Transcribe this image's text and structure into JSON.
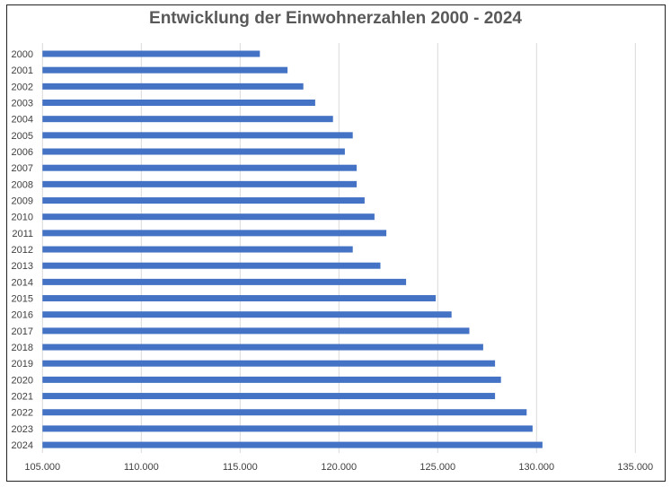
{
  "chart_data": {
    "type": "bar",
    "orientation": "horizontal",
    "title": "Entwicklung der Einwohnerzahlen 2000 - 2024",
    "categories": [
      "2000",
      "2001",
      "2002",
      "2003",
      "2004",
      "2005",
      "2006",
      "2007",
      "2008",
      "2009",
      "2010",
      "2011",
      "2012",
      "2013",
      "2014",
      "2015",
      "2016",
      "2017",
      "2018",
      "2019",
      "2020",
      "2021",
      "2022",
      "2023",
      "2024"
    ],
    "values": [
      116000,
      117400,
      118200,
      118800,
      119700,
      120700,
      120300,
      120900,
      120900,
      121300,
      121800,
      122400,
      120700,
      122100,
      123400,
      124900,
      125700,
      126600,
      127300,
      127900,
      128200,
      127900,
      129500,
      129800,
      130300
    ],
    "xlim": [
      105000,
      135000
    ],
    "xticks": [
      105000,
      110000,
      115000,
      120000,
      125000,
      130000,
      135000
    ],
    "xtick_labels": [
      "105.000",
      "110.000",
      "115.000",
      "120.000",
      "125.000",
      "130.000",
      "135.000"
    ],
    "grid": "vertical",
    "bar_color": "#4472C4",
    "grid_color": "#D9D9D9"
  }
}
